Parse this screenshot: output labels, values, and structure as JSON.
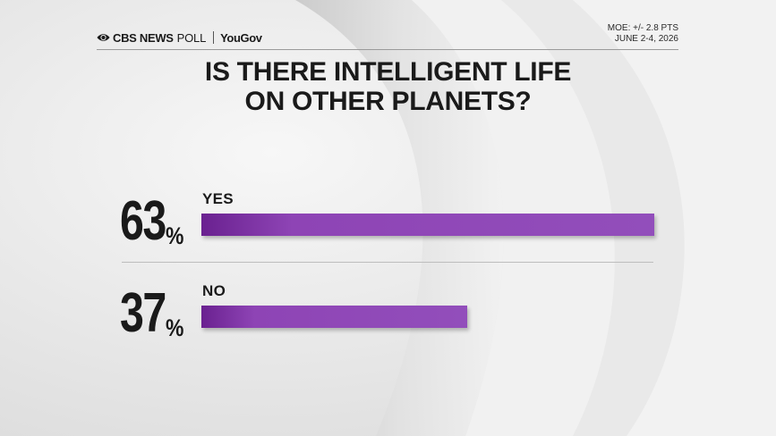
{
  "header": {
    "brand_cbs": "CBS NEWS",
    "brand_poll": "POLL",
    "brand_partner": "YouGov",
    "moe": "MOE: +/- 2.8 PTS",
    "dates": "JUNE 2-4, 2026"
  },
  "chart_data": {
    "type": "bar",
    "orientation": "horizontal",
    "title": "IS THERE INTELLIGENT LIFE ON OTHER PLANETS?",
    "title_lines": [
      "IS THERE INTELLIGENT LIFE",
      "ON OTHER PLANETS?"
    ],
    "categories": [
      "YES",
      "NO"
    ],
    "values": [
      63,
      37
    ],
    "value_labels": [
      "63",
      "37"
    ],
    "unit": "%",
    "xlim": [
      0,
      100
    ],
    "grid": false,
    "bar_color": "#8e44b5"
  }
}
